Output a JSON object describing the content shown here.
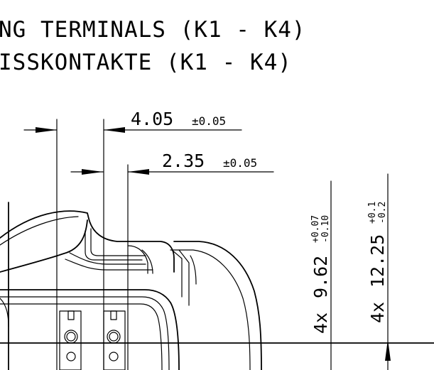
{
  "title": {
    "line1": "NG TERMINALS (K1 - K4)",
    "line2": "ISSKONTAKTE (K1 - K4)"
  },
  "dimensions": {
    "d1": {
      "value": "4.05",
      "tolerance": "±0.05"
    },
    "d2": {
      "value": "2.35",
      "tolerance": "±0.05"
    },
    "d3": {
      "prefix": "4x",
      "value": "9.62",
      "upper": "+0.07",
      "lower": "-0.10"
    },
    "d4": {
      "prefix": "4x",
      "value": "12.25",
      "upper": "+0.1",
      "lower": "-0.2"
    }
  }
}
